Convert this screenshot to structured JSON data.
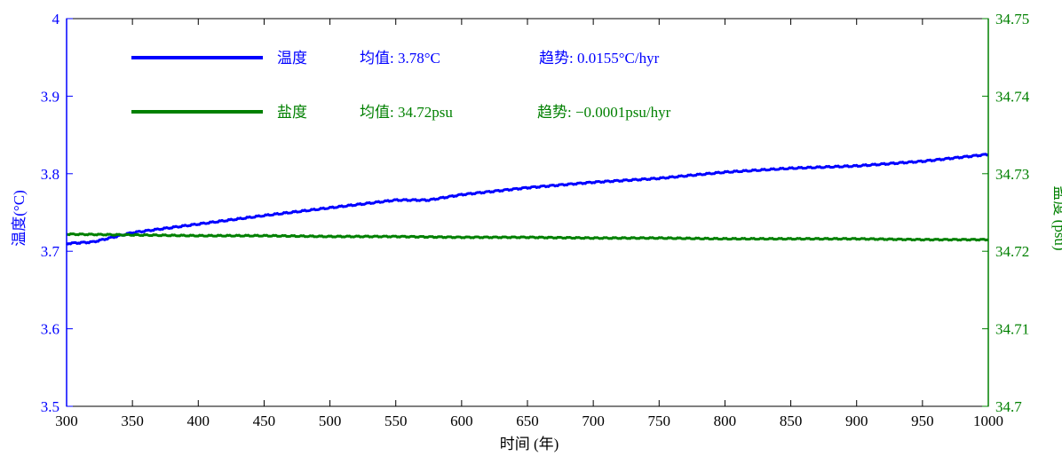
{
  "chart_data": {
    "type": "line",
    "xlabel": "时间 (年)",
    "xlim": [
      300,
      1000
    ],
    "x_ticks": [
      "300",
      "350",
      "400",
      "450",
      "500",
      "550",
      "600",
      "650",
      "700",
      "750",
      "800",
      "850",
      "900",
      "950",
      "1000"
    ],
    "y_left": {
      "label": "温度(°C)",
      "ylim": [
        3.5,
        4.0
      ],
      "ticks": [
        "3.5",
        "3.6",
        "3.7",
        "3.8",
        "3.9",
        "4"
      ],
      "color": "#0000ff"
    },
    "y_right": {
      "label": "盐度 (psu)",
      "ylim": [
        34.7,
        34.75
      ],
      "ticks": [
        "34.7",
        "34.71",
        "34.72",
        "34.73",
        "34.74",
        "34.75"
      ],
      "color": "#008000"
    },
    "series": [
      {
        "name": "温度",
        "axis": "left",
        "color": "#0000ff",
        "legend_mean": "均值: 3.78°C",
        "legend_trend": "趋势:  0.0155°C/hyr",
        "x": [
          300,
          320,
          350,
          400,
          450,
          500,
          550,
          575,
          600,
          650,
          700,
          750,
          800,
          850,
          900,
          950,
          1000
        ],
        "values": [
          3.71,
          3.712,
          3.724,
          3.735,
          3.746,
          3.756,
          3.766,
          3.766,
          3.773,
          3.782,
          3.789,
          3.794,
          3.802,
          3.807,
          3.81,
          3.816,
          3.825
        ]
      },
      {
        "name": "盐度",
        "axis": "right",
        "color": "#008000",
        "legend_mean": "均值: 34.72psu",
        "legend_trend": "趋势: −0.0001psu/hyr",
        "x": [
          300,
          350,
          400,
          450,
          500,
          550,
          600,
          650,
          700,
          750,
          800,
          850,
          900,
          950,
          1000
        ],
        "values": [
          34.7222,
          34.7221,
          34.722,
          34.722,
          34.7219,
          34.7219,
          34.7218,
          34.7218,
          34.7217,
          34.7217,
          34.7216,
          34.7216,
          34.7216,
          34.7215,
          34.7215
        ]
      }
    ],
    "grid": false,
    "legend_position": "top-left"
  }
}
